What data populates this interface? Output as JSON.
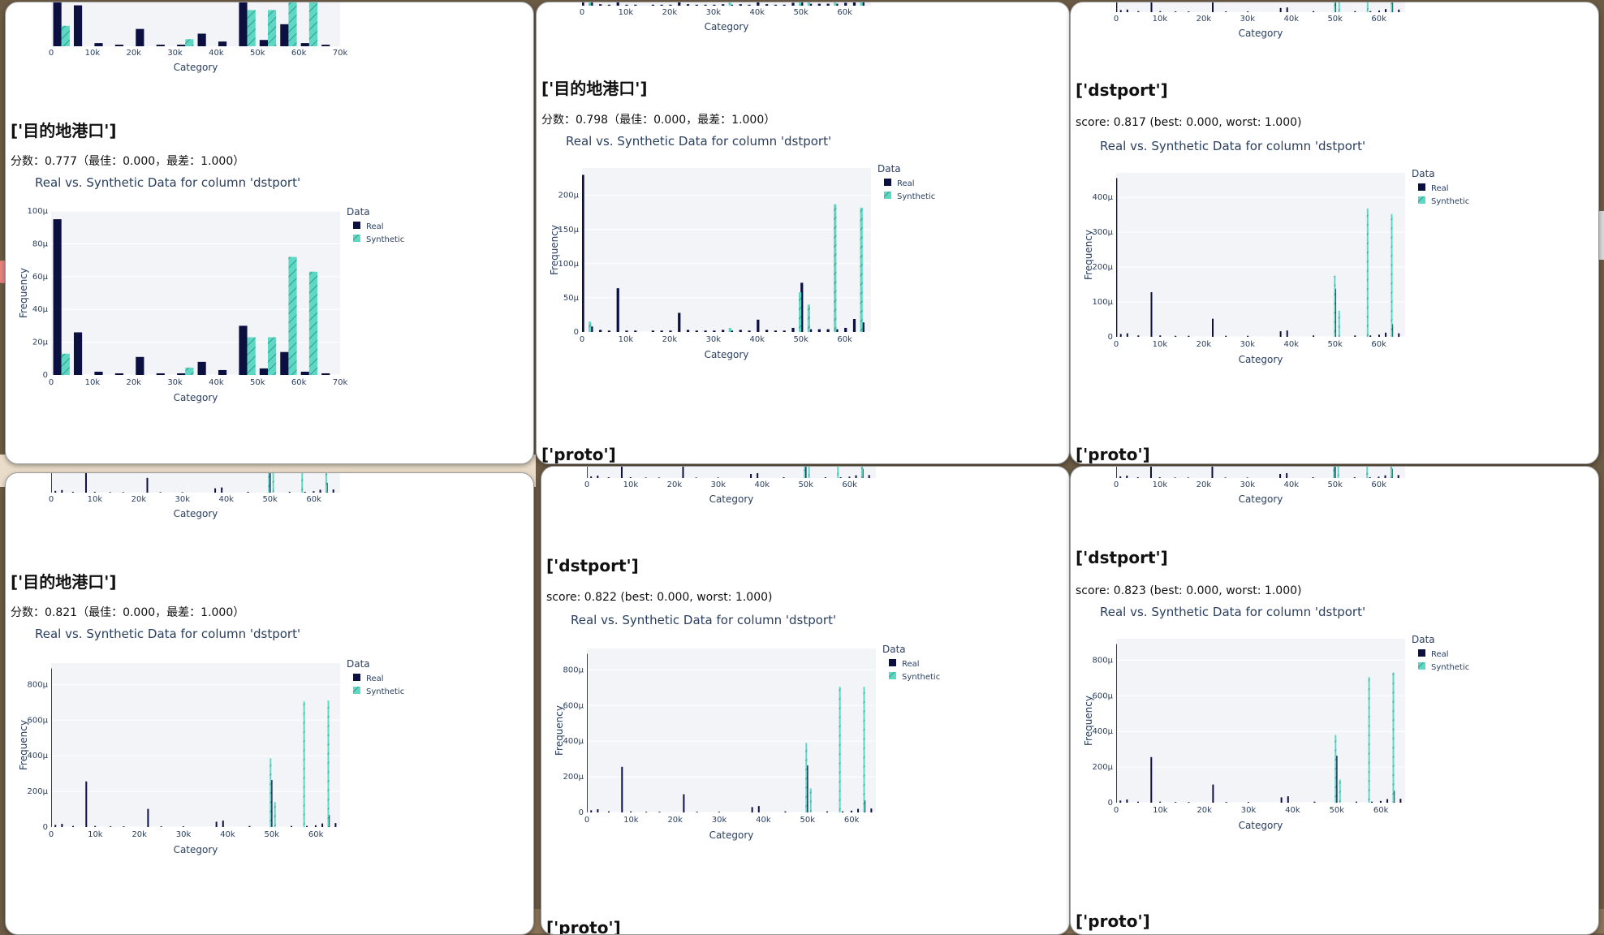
{
  "legend_title": "Data",
  "legend_real": "Real",
  "legend_synthetic": "Synthetic",
  "x_axis_label": "Category",
  "y_axis_label": "Frequency",
  "colors": {
    "real": "#0c1040",
    "synthetic": "#5dd8c4",
    "plot_bg": "#f3f4f8"
  },
  "panels": [
    {
      "title": "['目的地港口']",
      "score": "分数：0.777（最佳：0.000，最差：1.000）",
      "caption": "Real vs. Synthetic Data for column 'dstport'",
      "footer": "",
      "chart_data": {
        "type": "bar",
        "xlabel": "Category",
        "ylabel": "Frequency",
        "xlim": [
          0,
          70000
        ],
        "ylim": [
          0,
          0.0001
        ],
        "x_ticks": [
          "0",
          "10k",
          "20k",
          "30k",
          "40k",
          "50k",
          "60k",
          "70k"
        ],
        "y_ticks": [
          "0",
          "20μ",
          "40μ",
          "60μ",
          "80μ",
          "100μ"
        ],
        "grid": true,
        "legend": "top-right",
        "bin_width": 5000,
        "series": [
          {
            "name": "Real",
            "x": [
              2500,
              7500,
              12500,
              17500,
              22500,
              27500,
              32500,
              37500,
              42500,
              47500,
              52500,
              57500,
              62500,
              67500
            ],
            "values": [
              9.5e-05,
              2.6e-05,
              2e-06,
              1e-06,
              1.1e-05,
              1e-06,
              1e-06,
              8e-06,
              3e-06,
              3e-05,
              4e-06,
              1.4e-05,
              2e-06,
              1e-06
            ]
          },
          {
            "name": "Synthetic",
            "x": [
              2500,
              7500,
              12500,
              17500,
              22500,
              27500,
              32500,
              37500,
              42500,
              47500,
              52500,
              57500,
              62500,
              67500
            ],
            "values": [
              1.3e-05,
              0,
              0,
              0,
              0,
              0,
              4.5e-06,
              0,
              0,
              2.3e-05,
              2.3e-05,
              7.2e-05,
              6.3e-05,
              0
            ]
          }
        ]
      }
    },
    {
      "title": "['目的地港口']",
      "score": "分数：0.798（最佳：0.000，最差：1.000）",
      "caption": "Real vs. Synthetic Data for column 'dstport'",
      "footer": "['proto']",
      "chart_data": {
        "type": "bar",
        "xlabel": "Category",
        "ylabel": "Frequency",
        "xlim": [
          0,
          66000
        ],
        "ylim": [
          0,
          0.00024
        ],
        "x_ticks": [
          "0",
          "10k",
          "20k",
          "30k",
          "40k",
          "50k",
          "60k"
        ],
        "y_ticks": [
          "0",
          "50μ",
          "100μ",
          "150μ",
          "200μ"
        ],
        "grid": true,
        "legend": "top-right",
        "bin_width": 1000,
        "series": [
          {
            "name": "Real",
            "x": [
              500,
              2500,
              4500,
              6500,
              8500,
              10500,
              12500,
              16500,
              18500,
              20500,
              22500,
              24500,
              26500,
              28500,
              30500,
              32500,
              34500,
              36500,
              38500,
              40500,
              42500,
              44500,
              46500,
              48500,
              50500,
              52500,
              54500,
              56500,
              58500,
              60500,
              62500,
              64500
            ],
            "values": [
              0.00023,
              8e-06,
              3e-06,
              2e-06,
              6.4e-05,
              2e-06,
              2e-06,
              2e-06,
              2e-06,
              2e-06,
              2.8e-05,
              3e-06,
              2e-06,
              2e-06,
              2e-06,
              3e-06,
              2e-06,
              3e-06,
              2e-06,
              1.8e-05,
              3e-06,
              2e-06,
              2e-06,
              6e-06,
              7.2e-05,
              4e-06,
              4e-06,
              4e-06,
              4e-06,
              6e-06,
              1.9e-05,
              1.4e-05
            ]
          },
          {
            "name": "Synthetic",
            "x": [
              1500,
              33500,
              49500,
              51500,
              57500,
              63500
            ],
            "values": [
              1.5e-05,
              6e-06,
              5.8e-05,
              4e-05,
              0.000187,
              0.000182
            ]
          }
        ]
      }
    },
    {
      "title": "['dstport']",
      "score": "score: 0.817 (best: 0.000, worst: 1.000)",
      "caption": "Real vs. Synthetic Data for column 'dstport'",
      "footer": "['proto']",
      "chart_data": {
        "type": "bar",
        "xlabel": "Category",
        "ylabel": "Frequency",
        "xlim": [
          0,
          66000
        ],
        "ylim": [
          0,
          0.00047
        ],
        "x_ticks": [
          "0",
          "10k",
          "20k",
          "30k",
          "40k",
          "50k",
          "60k"
        ],
        "y_ticks": [
          "0",
          "100μ",
          "200μ",
          "300μ",
          "400μ"
        ],
        "grid": true,
        "legend": "top-right",
        "bin_width": 500,
        "series": [
          {
            "name": "Real",
            "x": [
              250,
              1250,
              2750,
              5250,
              8250,
              10250,
              13750,
              16750,
              22250,
              25250,
              30250,
              37750,
              39250,
              45250,
              50250,
              54750,
              58250,
              60250,
              61750,
              63250,
              64750
            ],
            "values": [
              0.000455,
              8e-06,
              1e-05,
              4e-06,
              0.000128,
              4e-06,
              3e-06,
              3e-06,
              5.2e-05,
              3e-06,
              3e-06,
              1.6e-05,
              1.8e-05,
              4e-06,
              0.000138,
              4e-06,
              4e-06,
              6e-06,
              1.2e-05,
              3.6e-05,
              1e-05
            ]
          },
          {
            "name": "Synthetic",
            "x": [
              49750,
              50750,
              57250,
              62750
            ],
            "values": [
              0.000175,
              7.5e-05,
              0.000368,
              0.000352
            ]
          }
        ]
      }
    },
    {
      "title": "['目的地港口']",
      "score": "分数：0.821（最佳：0.000，最差：1.000）",
      "caption": "Real vs. Synthetic Data for column 'dstport'",
      "footer": "",
      "chart_data": {
        "type": "bar",
        "xlabel": "Category",
        "ylabel": "Frequency",
        "xlim": [
          0,
          65500
        ],
        "ylim": [
          0,
          0.00092
        ],
        "x_ticks": [
          "0",
          "10k",
          "20k",
          "30k",
          "40k",
          "50k",
          "60k"
        ],
        "y_ticks": [
          "0",
          "200μ",
          "400μ",
          "600μ",
          "800μ"
        ],
        "grid": true,
        "legend": "top-right",
        "bin_width": 300,
        "series": [
          {
            "name": "Real",
            "x": [
              150,
              1150,
              2650,
              5150,
              8150,
              10150,
              13650,
              16650,
              22150,
              25150,
              30150,
              37650,
              39150,
              45150,
              50150,
              54650,
              58150,
              60150,
              61650,
              63150,
              64650
            ],
            "values": [
              0.00089,
              1.2e-05,
              1.8e-05,
              6e-06,
              0.000256,
              6e-06,
              4e-06,
              4e-06,
              0.000102,
              4e-06,
              4e-06,
              3e-05,
              3.6e-05,
              6e-06,
              0.000264,
              6e-06,
              6e-06,
              1e-05,
              2e-05,
              6.8e-05,
              2.2e-05
            ]
          },
          {
            "name": "Synthetic",
            "x": [
              49550,
              50550,
              57150,
              62650
            ],
            "values": [
              0.000385,
              0.00014,
              0.000705,
              0.00071
            ]
          }
        ]
      }
    },
    {
      "title": "['dstport']",
      "score": "score: 0.822 (best: 0.000, worst: 1.000)",
      "caption": "Real vs. Synthetic Data for column 'dstport'",
      "footer": "['proto']",
      "chart_data": {
        "type": "bar",
        "xlabel": "Category",
        "ylabel": "Frequency",
        "xlim": [
          0,
          65500
        ],
        "ylim": [
          0,
          0.00092
        ],
        "x_ticks": [
          "0",
          "10k",
          "20k",
          "30k",
          "40k",
          "50k",
          "60k"
        ],
        "y_ticks": [
          "0",
          "200μ",
          "400μ",
          "600μ",
          "800μ"
        ],
        "grid": true,
        "legend": "top-right",
        "bin_width": 300,
        "series": [
          {
            "name": "Real",
            "x": [
              150,
              1150,
              2650,
              5150,
              8150,
              10150,
              13650,
              16650,
              22150,
              25150,
              30150,
              37650,
              39150,
              45150,
              50150,
              54650,
              58150,
              60150,
              61650,
              63150,
              64650
            ],
            "values": [
              0.00089,
              1.2e-05,
              1.8e-05,
              6e-06,
              0.000256,
              6e-06,
              4e-06,
              4e-06,
              0.000102,
              4e-06,
              4e-06,
              3e-05,
              3.6e-05,
              6e-06,
              0.000264,
              6e-06,
              6e-06,
              1e-05,
              2e-05,
              6.8e-05,
              2.2e-05
            ]
          },
          {
            "name": "Synthetic",
            "x": [
              49550,
              50550,
              57150,
              62650
            ],
            "values": [
              0.00039,
              0.000135,
              0.000705,
              0.000705
            ]
          }
        ]
      }
    },
    {
      "title": "['dstport']",
      "score": "score: 0.823 (best: 0.000, worst: 1.000)",
      "caption": "Real vs. Synthetic Data for column 'dstport'",
      "footer": "['proto']",
      "chart_data": {
        "type": "bar",
        "xlabel": "Category",
        "ylabel": "Frequency",
        "xlim": [
          0,
          65500
        ],
        "ylim": [
          0,
          0.00092
        ],
        "x_ticks": [
          "0",
          "10k",
          "20k",
          "30k",
          "40k",
          "50k",
          "60k"
        ],
        "y_ticks": [
          "0",
          "200μ",
          "400μ",
          "600μ",
          "800μ"
        ],
        "grid": true,
        "legend": "top-right",
        "bin_width": 300,
        "series": [
          {
            "name": "Real",
            "x": [
              150,
              1150,
              2650,
              5150,
              8150,
              10150,
              13650,
              16650,
              22150,
              25150,
              30150,
              37650,
              39150,
              45150,
              50150,
              54650,
              58150,
              60150,
              61650,
              63150,
              64650
            ],
            "values": [
              0.00089,
              1.2e-05,
              1.8e-05,
              6e-06,
              0.000256,
              6e-06,
              4e-06,
              4e-06,
              0.000102,
              4e-06,
              4e-06,
              3e-05,
              3.6e-05,
              6e-06,
              0.000264,
              6e-06,
              6e-06,
              1e-05,
              2e-05,
              6.8e-05,
              2.2e-05
            ]
          },
          {
            "name": "Synthetic",
            "x": [
              49550,
              50550,
              57150,
              62650
            ],
            "values": [
              0.00038,
              0.00013,
              0.000705,
              0.00073
            ]
          }
        ]
      }
    }
  ]
}
